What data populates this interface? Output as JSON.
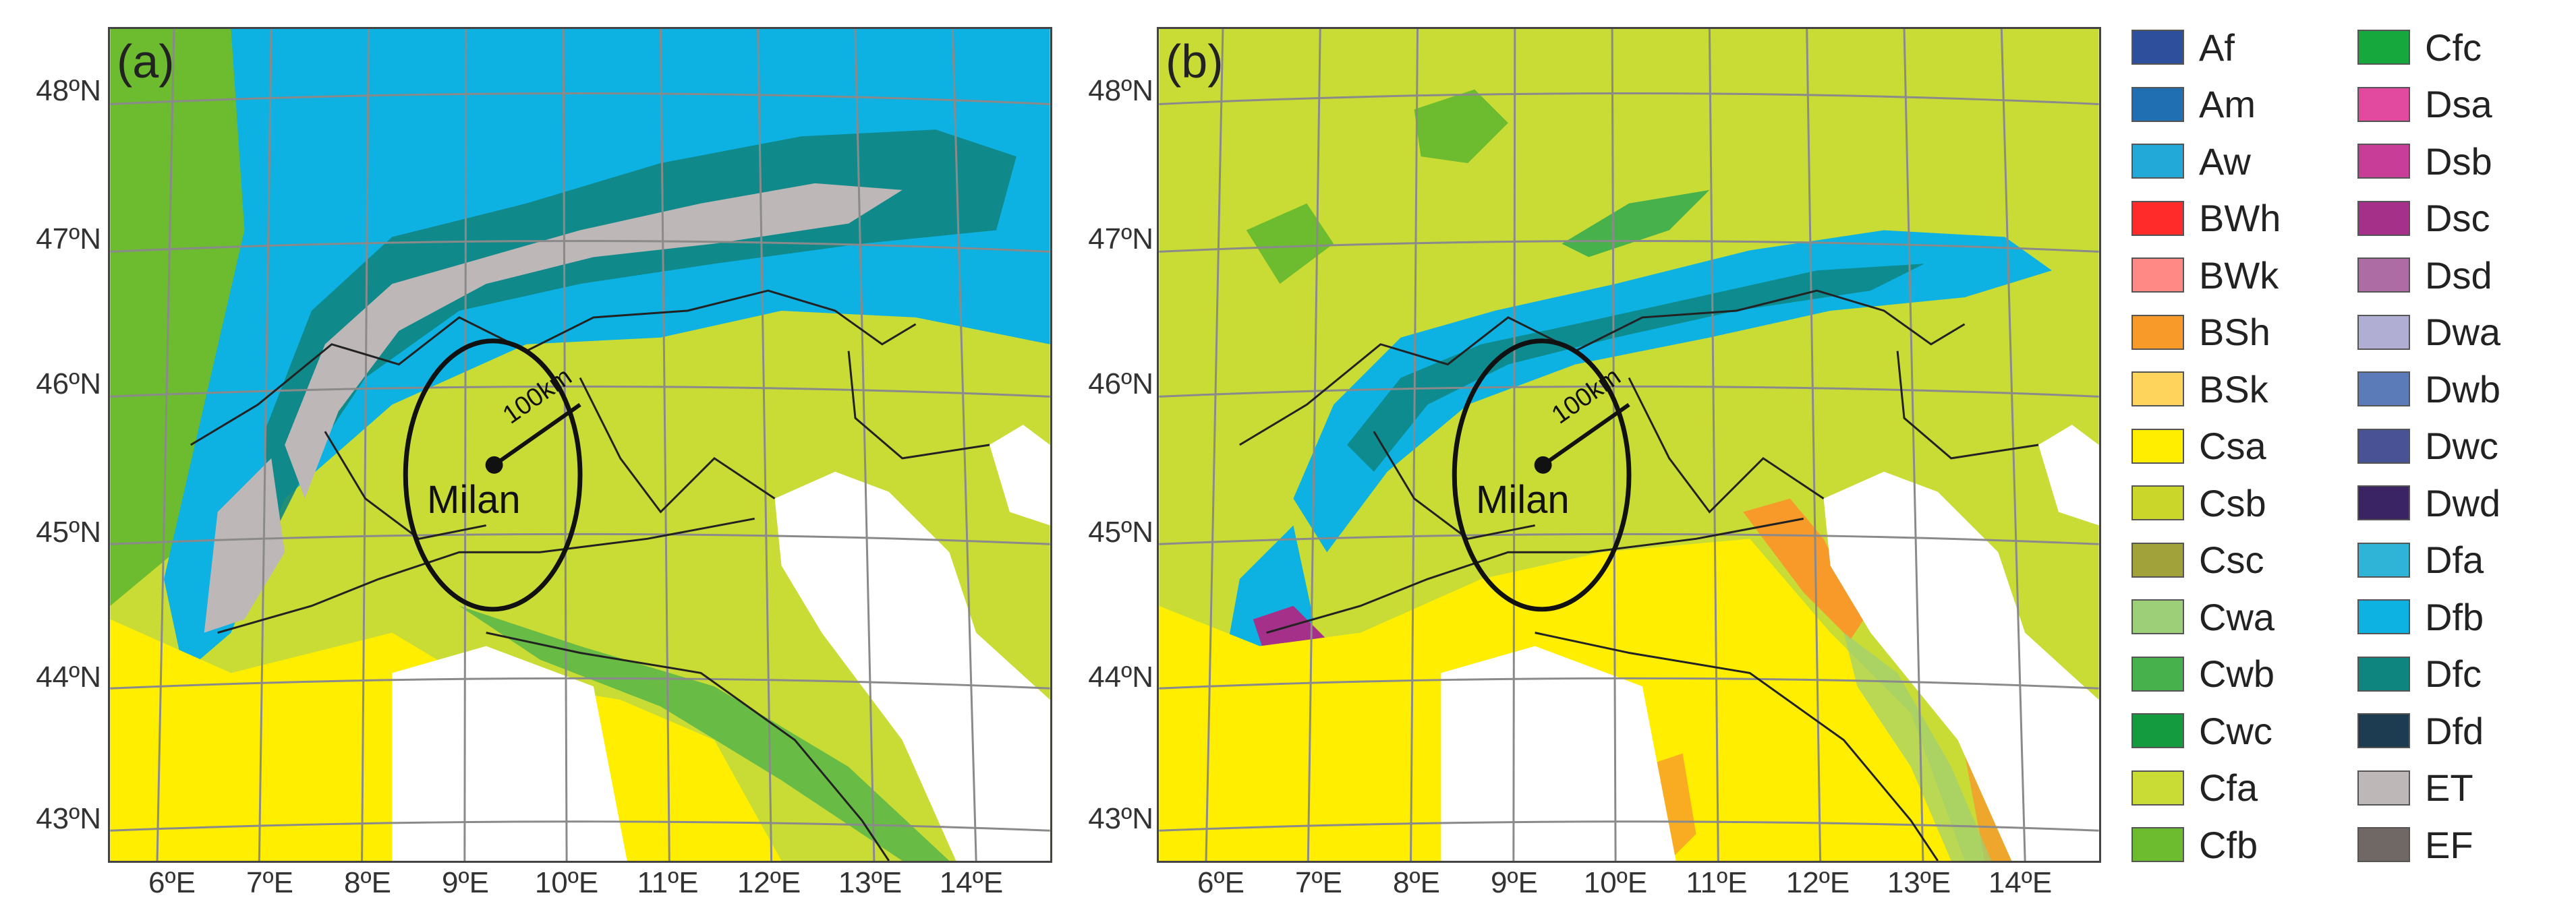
{
  "panels": [
    {
      "id": "a",
      "letter": "(a)",
      "city": "Milan",
      "radius_label": "100km"
    },
    {
      "id": "b",
      "letter": "(b)",
      "city": "Milan",
      "radius_label": "100km"
    }
  ],
  "axes": {
    "lat_labels": [
      "48ºN",
      "47ºN",
      "46ºN",
      "45ºN",
      "44ºN",
      "43ºN"
    ],
    "lon_labels": [
      "6ºE",
      "7ºE",
      "8ºE",
      "9ºE",
      "10ºE",
      "11ºE",
      "12ºE",
      "13ºE",
      "14ºE"
    ]
  },
  "legend": [
    {
      "code": "Af",
      "color": "#2e4f9b"
    },
    {
      "code": "Am",
      "color": "#1f6fb2"
    },
    {
      "code": "Aw",
      "color": "#23a9d8"
    },
    {
      "code": "BWh",
      "color": "#ff2a2a"
    },
    {
      "code": "BWk",
      "color": "#ff8a85"
    },
    {
      "code": "BSh",
      "color": "#f79a2a"
    },
    {
      "code": "BSk",
      "color": "#ffd45c"
    },
    {
      "code": "Csa",
      "color": "#ffee00"
    },
    {
      "code": "Csb",
      "color": "#cbd62a"
    },
    {
      "code": "Csc",
      "color": "#a2a23a"
    },
    {
      "code": "Cwa",
      "color": "#9ccf78"
    },
    {
      "code": "Cwb",
      "color": "#47b14b"
    },
    {
      "code": "Cwc",
      "color": "#149a3f"
    },
    {
      "code": "Cfa",
      "color": "#c9dc36"
    },
    {
      "code": "Cfb",
      "color": "#6dbb2e"
    },
    {
      "code": "Cfc",
      "color": "#17a83d"
    },
    {
      "code": "Dsa",
      "color": "#e24aa0"
    },
    {
      "code": "Dsb",
      "color": "#c83d98"
    },
    {
      "code": "Dsc",
      "color": "#a4308a"
    },
    {
      "code": "Dsd",
      "color": "#ad6ca3"
    },
    {
      "code": "Dwa",
      "color": "#b1aed4"
    },
    {
      "code": "Dwb",
      "color": "#5a7ab8"
    },
    {
      "code": "Dwc",
      "color": "#4a5296"
    },
    {
      "code": "Dwd",
      "color": "#3a2463"
    },
    {
      "code": "Dfa",
      "color": "#2fb3d6"
    },
    {
      "code": "Dfb",
      "color": "#0db1e2"
    },
    {
      "code": "Dfc",
      "color": "#0f8580"
    },
    {
      "code": "Dfd",
      "color": "#1d3b51"
    },
    {
      "code": "ET",
      "color": "#bdb7b7"
    },
    {
      "code": "EF",
      "color": "#6f6864"
    }
  ]
}
